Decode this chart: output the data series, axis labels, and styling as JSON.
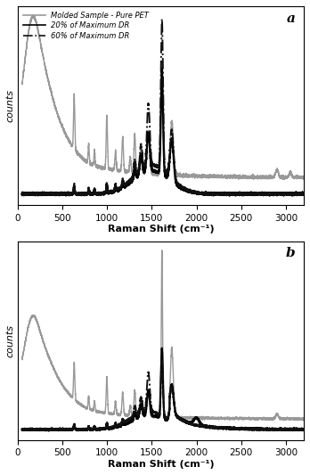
{
  "title_a": "a",
  "title_b": "b",
  "xlabel": "Raman Shift (cm⁻¹)",
  "ylabel": "counts",
  "xlim": [
    0,
    3200
  ],
  "xticks": [
    0,
    500,
    1000,
    1500,
    2000,
    2500,
    3000
  ],
  "legend_labels": [
    "Molded Sample - Pure PET",
    "20% of Maximum DR",
    "60% of Maximum DR"
  ],
  "gray_color": "#999999",
  "black_color": "#000000",
  "dashd_color": "#111111",
  "bg_color": "#ffffff"
}
